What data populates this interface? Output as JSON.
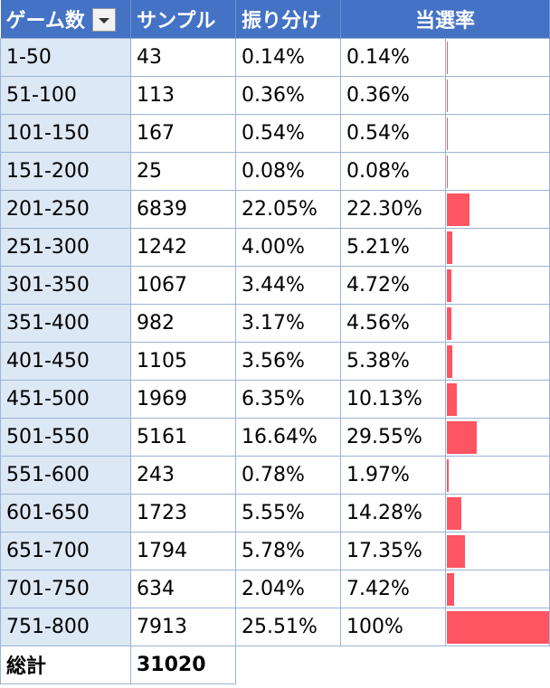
{
  "header": {
    "col1": "ゲーム数",
    "col2": "サンプル",
    "col3": "振り分け",
    "col4": "当選率"
  },
  "rows": [
    {
      "range": "1-50",
      "sample": "43",
      "share": "0.14%",
      "rate": "0.14%",
      "rate_value": 0.14
    },
    {
      "range": "51-100",
      "sample": "113",
      "share": "0.36%",
      "rate": "0.36%",
      "rate_value": 0.36
    },
    {
      "range": "101-150",
      "sample": "167",
      "share": "0.54%",
      "rate": "0.54%",
      "rate_value": 0.54
    },
    {
      "range": "151-200",
      "sample": "25",
      "share": "0.08%",
      "rate": "0.08%",
      "rate_value": 0.08
    },
    {
      "range": "201-250",
      "sample": "6839",
      "share": "22.05%",
      "rate": "22.30%",
      "rate_value": 22.3
    },
    {
      "range": "251-300",
      "sample": "1242",
      "share": "4.00%",
      "rate": "5.21%",
      "rate_value": 5.21
    },
    {
      "range": "301-350",
      "sample": "1067",
      "share": "3.44%",
      "rate": "4.72%",
      "rate_value": 4.72
    },
    {
      "range": "351-400",
      "sample": "982",
      "share": "3.17%",
      "rate": "4.56%",
      "rate_value": 4.56
    },
    {
      "range": "401-450",
      "sample": "1105",
      "share": "3.56%",
      "rate": "5.38%",
      "rate_value": 5.38
    },
    {
      "range": "451-500",
      "sample": "1969",
      "share": "6.35%",
      "rate": "10.13%",
      "rate_value": 10.13
    },
    {
      "range": "501-550",
      "sample": "5161",
      "share": "16.64%",
      "rate": "29.55%",
      "rate_value": 29.55
    },
    {
      "range": "551-600",
      "sample": "243",
      "share": "0.78%",
      "rate": "1.97%",
      "rate_value": 1.97
    },
    {
      "range": "601-650",
      "sample": "1723",
      "share": "5.55%",
      "rate": "14.28%",
      "rate_value": 14.28
    },
    {
      "range": "651-700",
      "sample": "1794",
      "share": "5.78%",
      "rate": "17.35%",
      "rate_value": 17.35
    },
    {
      "range": "701-750",
      "sample": "634",
      "share": "2.04%",
      "rate": "7.42%",
      "rate_value": 7.42
    },
    {
      "range": "751-800",
      "sample": "7913",
      "share": "25.51%",
      "rate": "100%",
      "rate_value": 100
    }
  ],
  "total": {
    "label": "総計",
    "value": "31020"
  },
  "colors": {
    "header_bg": "#4472c4",
    "bar": "#ff5461",
    "first_col_bg": "#dde8f5"
  }
}
